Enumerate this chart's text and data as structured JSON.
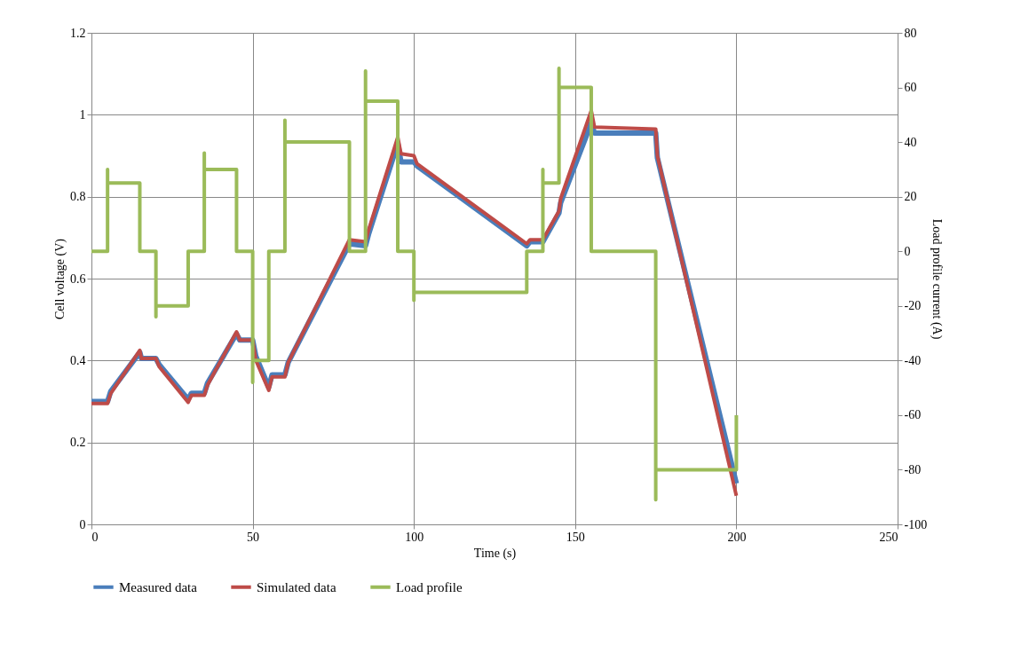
{
  "chart_data": {
    "type": "line",
    "xlabel": "Time (s)",
    "ylabel": "Cell voltage (V)",
    "y2label": "Load profile current (A)",
    "xlim": [
      0,
      250
    ],
    "xticks": [
      0,
      50,
      100,
      150,
      200,
      250
    ],
    "ylim": [
      0,
      1.2
    ],
    "yticks": [
      0,
      0.2,
      0.4,
      0.6,
      0.8,
      1,
      1.2
    ],
    "y2lim": [
      -100,
      80
    ],
    "y2ticks": [
      -100,
      -80,
      -60,
      -40,
      -20,
      0,
      20,
      40,
      60,
      80
    ],
    "grid": true,
    "legend": "bottom",
    "marker": "none",
    "line_style": "solid",
    "series": [
      {
        "name": "Measured data",
        "color": "#4a7ebb",
        "x": [
          0,
          5,
          6,
          15,
          15.5,
          20,
          21,
          30,
          31,
          35,
          36,
          45,
          46,
          50,
          51,
          55,
          56,
          60,
          61,
          80,
          85,
          86,
          95,
          96,
          100,
          101,
          135,
          136,
          140,
          145,
          145.5,
          155,
          156,
          175,
          175.5,
          200
        ],
        "values": [
          0.3,
          0.3,
          0.325,
          0.42,
          0.405,
          0.405,
          0.39,
          0.305,
          0.32,
          0.32,
          0.345,
          0.465,
          0.45,
          0.45,
          0.41,
          0.335,
          0.365,
          0.365,
          0.395,
          0.685,
          0.68,
          0.71,
          0.93,
          0.885,
          0.885,
          0.875,
          0.68,
          0.69,
          0.69,
          0.76,
          0.785,
          0.98,
          0.955,
          0.955,
          0.895,
          0.1
        ]
      },
      {
        "name": "Simulated data",
        "color": "#be4b48",
        "x": [
          0,
          5,
          6,
          15,
          15.5,
          20,
          21,
          30,
          31,
          35,
          36,
          45,
          46,
          50,
          51,
          55,
          56,
          60,
          61,
          80,
          85,
          86,
          95,
          96,
          100,
          101,
          135,
          136,
          140,
          145,
          145.5,
          155,
          156,
          175,
          175.5,
          200
        ],
        "values": [
          0.295,
          0.295,
          0.32,
          0.425,
          0.405,
          0.405,
          0.385,
          0.298,
          0.315,
          0.315,
          0.34,
          0.47,
          0.45,
          0.45,
          0.4,
          0.327,
          0.36,
          0.36,
          0.395,
          0.695,
          0.69,
          0.72,
          0.945,
          0.905,
          0.9,
          0.88,
          0.685,
          0.695,
          0.695,
          0.765,
          0.795,
          1.01,
          0.97,
          0.965,
          0.9,
          0.07
        ]
      },
      {
        "name": "Load profile",
        "color": "#9bbb59",
        "axis": "y2",
        "x": [
          0,
          5,
          5,
          5,
          15,
          15,
          20,
          20,
          20,
          30,
          30,
          35,
          35,
          35,
          45,
          45,
          50,
          50,
          50,
          55,
          55,
          60,
          60,
          60,
          80,
          80,
          85,
          85,
          85,
          95,
          95,
          100,
          100,
          100,
          135,
          135,
          140,
          140,
          140,
          145,
          145,
          145,
          155,
          155,
          175,
          175,
          175,
          200,
          200
        ],
        "values": [
          0,
          0,
          30,
          25,
          25,
          0,
          0,
          -24,
          -20,
          -20,
          0,
          0,
          36,
          30,
          30,
          0,
          0,
          -48,
          -40,
          -40,
          0,
          0,
          48,
          40,
          40,
          0,
          0,
          66,
          55,
          55,
          0,
          0,
          -18,
          -15,
          -15,
          0,
          0,
          30,
          25,
          25,
          67,
          60,
          60,
          0,
          0,
          -91,
          -80,
          -80,
          -60
        ]
      }
    ]
  }
}
